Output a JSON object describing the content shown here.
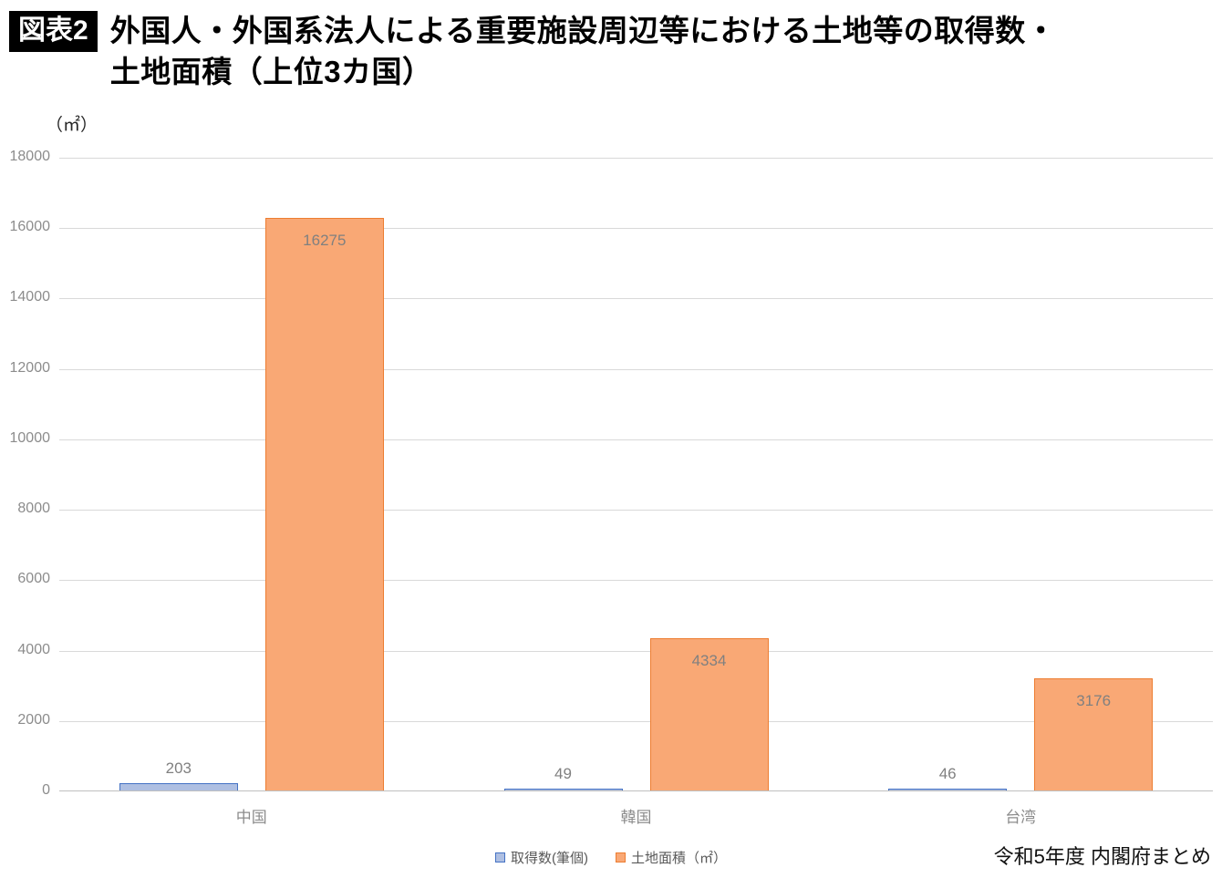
{
  "figure": {
    "badge": "図表2",
    "title_line1": "外国人・外国系法人による重要施設周辺等における土地等の取得数・",
    "title_line2": "土地面積（上位3カ国）",
    "unit_label": "（㎡）",
    "source": "令和5年度 内閣府まとめ"
  },
  "chart_data": {
    "type": "bar",
    "title": "外国人・外国系法人による重要施設周辺等における土地等の取得数・土地面積（上位3カ国）",
    "categories": [
      "中国",
      "韓国",
      "台湾"
    ],
    "series": [
      {
        "name": "取得数(筆個)",
        "values": [
          203,
          49,
          46
        ],
        "color": "#aebfe2",
        "border": "#4472c4"
      },
      {
        "name": "土地面積（㎡）",
        "values": [
          16275,
          4334,
          3176
        ],
        "color": "#f9a875",
        "border": "#ed7d31"
      }
    ],
    "xlabel": "",
    "ylabel": "（㎡）",
    "ylim": [
      0,
      18000
    ],
    "ytick_step": 2000,
    "grid": true,
    "legend_position": "bottom",
    "source_note": "令和5年度 内閣府まとめ"
  }
}
